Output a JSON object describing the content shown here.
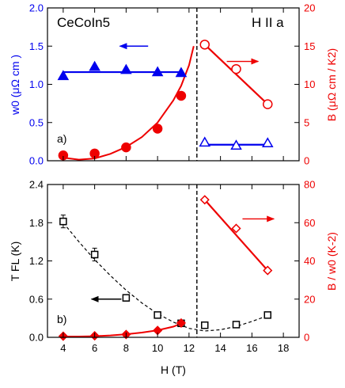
{
  "chart_data": [
    {
      "panel_label": "a)",
      "type": "scatter",
      "annotations": [
        "CeCoIn5",
        "H II a"
      ],
      "x_ticks": [
        "4",
        "6",
        "8",
        "10",
        "12",
        "14",
        "16",
        "18"
      ],
      "xlim": [
        3,
        19
      ],
      "grid": false,
      "vertical_dashed_line_x": 12.5,
      "left_axis": {
        "label": "w0 (μΩ cm )",
        "color": "#0000ee",
        "ylim": [
          0,
          2.0
        ],
        "ticks": [
          "0.0",
          "0.5",
          "1.0",
          "1.5",
          "2.0"
        ]
      },
      "right_axis": {
        "label": "B (μΩ cm / K2)",
        "color": "#ee0000",
        "ylim": [
          0,
          20
        ],
        "ticks": [
          "0",
          "5",
          "10",
          "15",
          "20"
        ]
      },
      "series": [
        {
          "axis": "left",
          "marker": "filled-triangle",
          "color": "#0000ee",
          "x": [
            4,
            6,
            8,
            10,
            11.5
          ],
          "y": [
            1.11,
            1.23,
            1.19,
            1.16,
            1.15
          ],
          "fit_line": {
            "x": [
              4,
              11.5
            ],
            "y": [
              1.16,
              1.16
            ]
          }
        },
        {
          "axis": "left",
          "marker": "open-triangle",
          "color": "#0000ee",
          "x": [
            13,
            15,
            17
          ],
          "y": [
            0.24,
            0.2,
            0.23
          ],
          "fit_line": {
            "x": [
              13,
              17
            ],
            "y": [
              0.21,
              0.21
            ]
          }
        },
        {
          "axis": "right",
          "marker": "filled-circle",
          "color": "#ee0000",
          "x": [
            4,
            6,
            8,
            10,
            11.5
          ],
          "y": [
            0.7,
            0.95,
            1.75,
            4.2,
            8.5
          ]
        },
        {
          "axis": "right",
          "marker": "open-circle",
          "color": "#ee0000",
          "x": [
            13,
            15,
            17
          ],
          "y": [
            15.2,
            12.0,
            7.4
          ],
          "fit_line": {
            "x": [
              13,
              17
            ],
            "y": [
              15.2,
              7.4
            ]
          }
        }
      ],
      "curve": {
        "axis": "right",
        "color": "#ee0000",
        "x": [
          4,
          5,
          6,
          7,
          8,
          9,
          10,
          11,
          11.5,
          12,
          12.3
        ],
        "y": [
          0.4,
          0.15,
          0.3,
          0.9,
          1.8,
          3.1,
          5.0,
          7.9,
          9.8,
          12.5,
          15.0
        ]
      },
      "arrows": [
        {
          "direction": "left",
          "color": "#0000ee",
          "x_from": 9.4,
          "x_to": 7.6,
          "axis": "left",
          "y": 1.5
        },
        {
          "direction": "right",
          "color": "#ee0000",
          "x_from": 14.4,
          "x_to": 16.4,
          "axis": "right",
          "y": 13.0
        }
      ]
    },
    {
      "panel_label": "b)",
      "type": "scatter",
      "xlabel": "H (T)",
      "x_ticks": [
        "4",
        "6",
        "8",
        "10",
        "12",
        "14",
        "16",
        "18"
      ],
      "xlim": [
        3,
        19
      ],
      "grid": false,
      "vertical_dashed_line_x": 12.5,
      "left_axis": {
        "label": "T FL (K)",
        "color": "#000000",
        "ylim": [
          0,
          2.4
        ],
        "ticks": [
          "0.0",
          "0.6",
          "1.2",
          "1.8",
          "2.4"
        ]
      },
      "right_axis": {
        "label": "B / w0 (K-2)",
        "color": "#ee0000",
        "ylim": [
          0,
          80
        ],
        "ticks": [
          "0",
          "20",
          "40",
          "60",
          "80"
        ]
      },
      "series": [
        {
          "axis": "left",
          "marker": "open-square",
          "color": "#000000",
          "x": [
            4,
            6,
            8,
            10,
            11.5,
            13,
            15,
            17
          ],
          "y": [
            1.82,
            1.3,
            0.62,
            0.35,
            0.22,
            0.19,
            0.2,
            0.35
          ],
          "y_err": [
            0.1,
            0.1,
            0.05,
            0.03,
            0.03,
            0.02,
            0.02,
            0.02
          ]
        },
        {
          "axis": "right",
          "marker": "filled-diamond",
          "color": "#ee0000",
          "x": [
            4,
            6,
            8,
            10,
            11.5
          ],
          "y": [
            0.6,
            0.8,
            1.5,
            3.6,
            7.5
          ]
        },
        {
          "axis": "right",
          "marker": "open-diamond",
          "color": "#ee0000",
          "x": [
            13,
            15,
            17
          ],
          "y": [
            72,
            57,
            35
          ],
          "fit_line": {
            "x": [
              13,
              17
            ],
            "y": [
              72,
              35
            ]
          }
        }
      ],
      "curves": [
        {
          "axis": "left",
          "color": "#000000",
          "dashed": true,
          "x": [
            4,
            5,
            6,
            7,
            8,
            9,
            10,
            11,
            12,
            13,
            14,
            15,
            16,
            17
          ],
          "y": [
            1.8,
            1.5,
            1.22,
            0.97,
            0.74,
            0.54,
            0.37,
            0.24,
            0.14,
            0.1,
            0.12,
            0.17,
            0.25,
            0.34
          ]
        },
        {
          "axis": "right",
          "color": "#ee0000",
          "dashed": false,
          "x": [
            4,
            5,
            6,
            7,
            8,
            9,
            10,
            11,
            11.5
          ],
          "y": [
            0.4,
            0.4,
            0.6,
            1.0,
            1.6,
            2.5,
            3.7,
            5.6,
            7.2
          ]
        }
      ],
      "arrows": [
        {
          "direction": "left",
          "color": "#000000",
          "x_from": 7.7,
          "x_to": 5.8,
          "axis": "left",
          "y": 0.6
        },
        {
          "direction": "right",
          "color": "#ee0000",
          "x_from": 15.4,
          "x_to": 17.4,
          "axis": "right",
          "y": 62
        }
      ]
    }
  ]
}
